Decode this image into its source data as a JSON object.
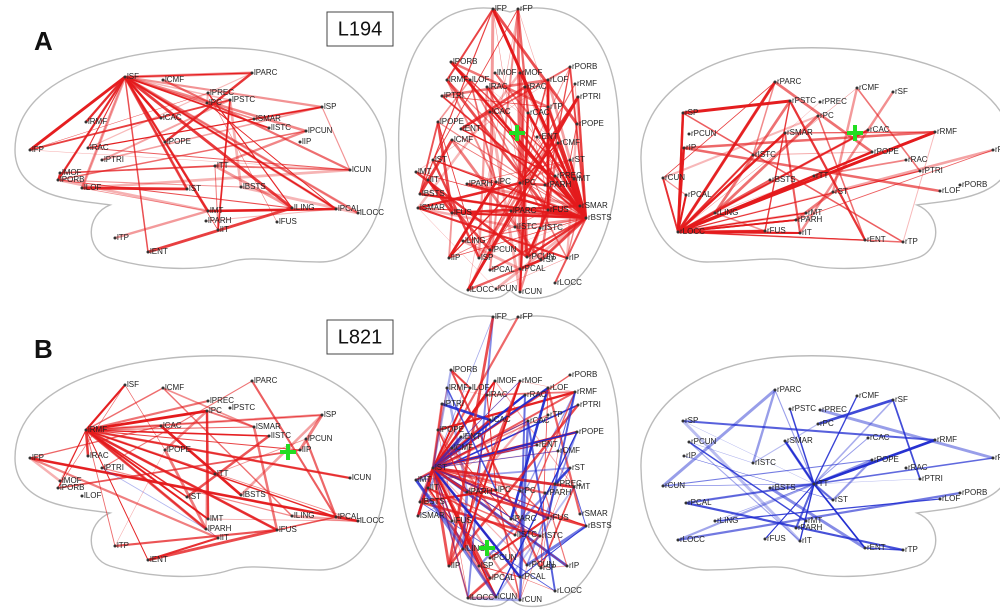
{
  "panels": [
    {
      "label": "A",
      "subject": "L194"
    },
    {
      "label": "B",
      "subject": "L821"
    }
  ],
  "views": {
    "left": [
      "lSF",
      "lCMF",
      "lPARC",
      "lPREC",
      "lPSTC",
      "lPC",
      "lSP",
      "lCAC",
      "lRMF",
      "lSMAR",
      "lISTC",
      "lPCUN",
      "lIP",
      "lRAC",
      "lPOPE",
      "lPTRI",
      "lFP",
      "lMOF",
      "lPORB",
      "lLOF",
      "lTT",
      "lST",
      "lBSTS",
      "lCUN",
      "lMT",
      "lPARH",
      "lIT",
      "lFUS",
      "lLING",
      "lPCAL",
      "lLOCC",
      "lTP",
      "lENT"
    ],
    "top": [
      "lFP",
      "rFP",
      "lPORB",
      "rPORB",
      "lMOF",
      "rMOF",
      "lRMF",
      "lLOF",
      "rLOF",
      "rRMF",
      "lRAC",
      "rRAC",
      "lPTRI",
      "rPTRI",
      "rTP",
      "lCAC",
      "rCAC",
      "lPOPE",
      "rPOPE",
      "lENT",
      "rENT",
      "lCMF",
      "rCMF",
      "lST",
      "rST",
      "lMT",
      "rMT",
      "lIT",
      "rPREC",
      "lPC",
      "rPC",
      "lPARH",
      "rPARH",
      "lBSTS",
      "rFUS",
      "rSMAR",
      "lSMAR",
      "lFUS",
      "lPARC",
      "rBSTS",
      "lISTC",
      "rISTC",
      "lLING",
      "lPCUN",
      "rPCUN",
      "rSP",
      "lIP",
      "lSP",
      "rIP",
      "lPCAL",
      "rPCAL",
      "lLOCC",
      "lCUN",
      "rCUN",
      "rLOCC"
    ],
    "right": [
      "rPARC",
      "rCMF",
      "rSF",
      "rPSTC",
      "rPREC",
      "rPC",
      "rSP",
      "rCAC",
      "rRMF",
      "rPCUN",
      "rSMAR",
      "rIP",
      "rISTC",
      "rPOPE",
      "rRAC",
      "rPTRI",
      "rPORB",
      "rLOF",
      "rFP",
      "rCUN",
      "rBSTS",
      "rTT",
      "rST",
      "rPCAL",
      "rMT",
      "rPARH",
      "rLING",
      "rLOCC",
      "rFUS",
      "rIT",
      "rENT",
      "rTP"
    ]
  }
}
